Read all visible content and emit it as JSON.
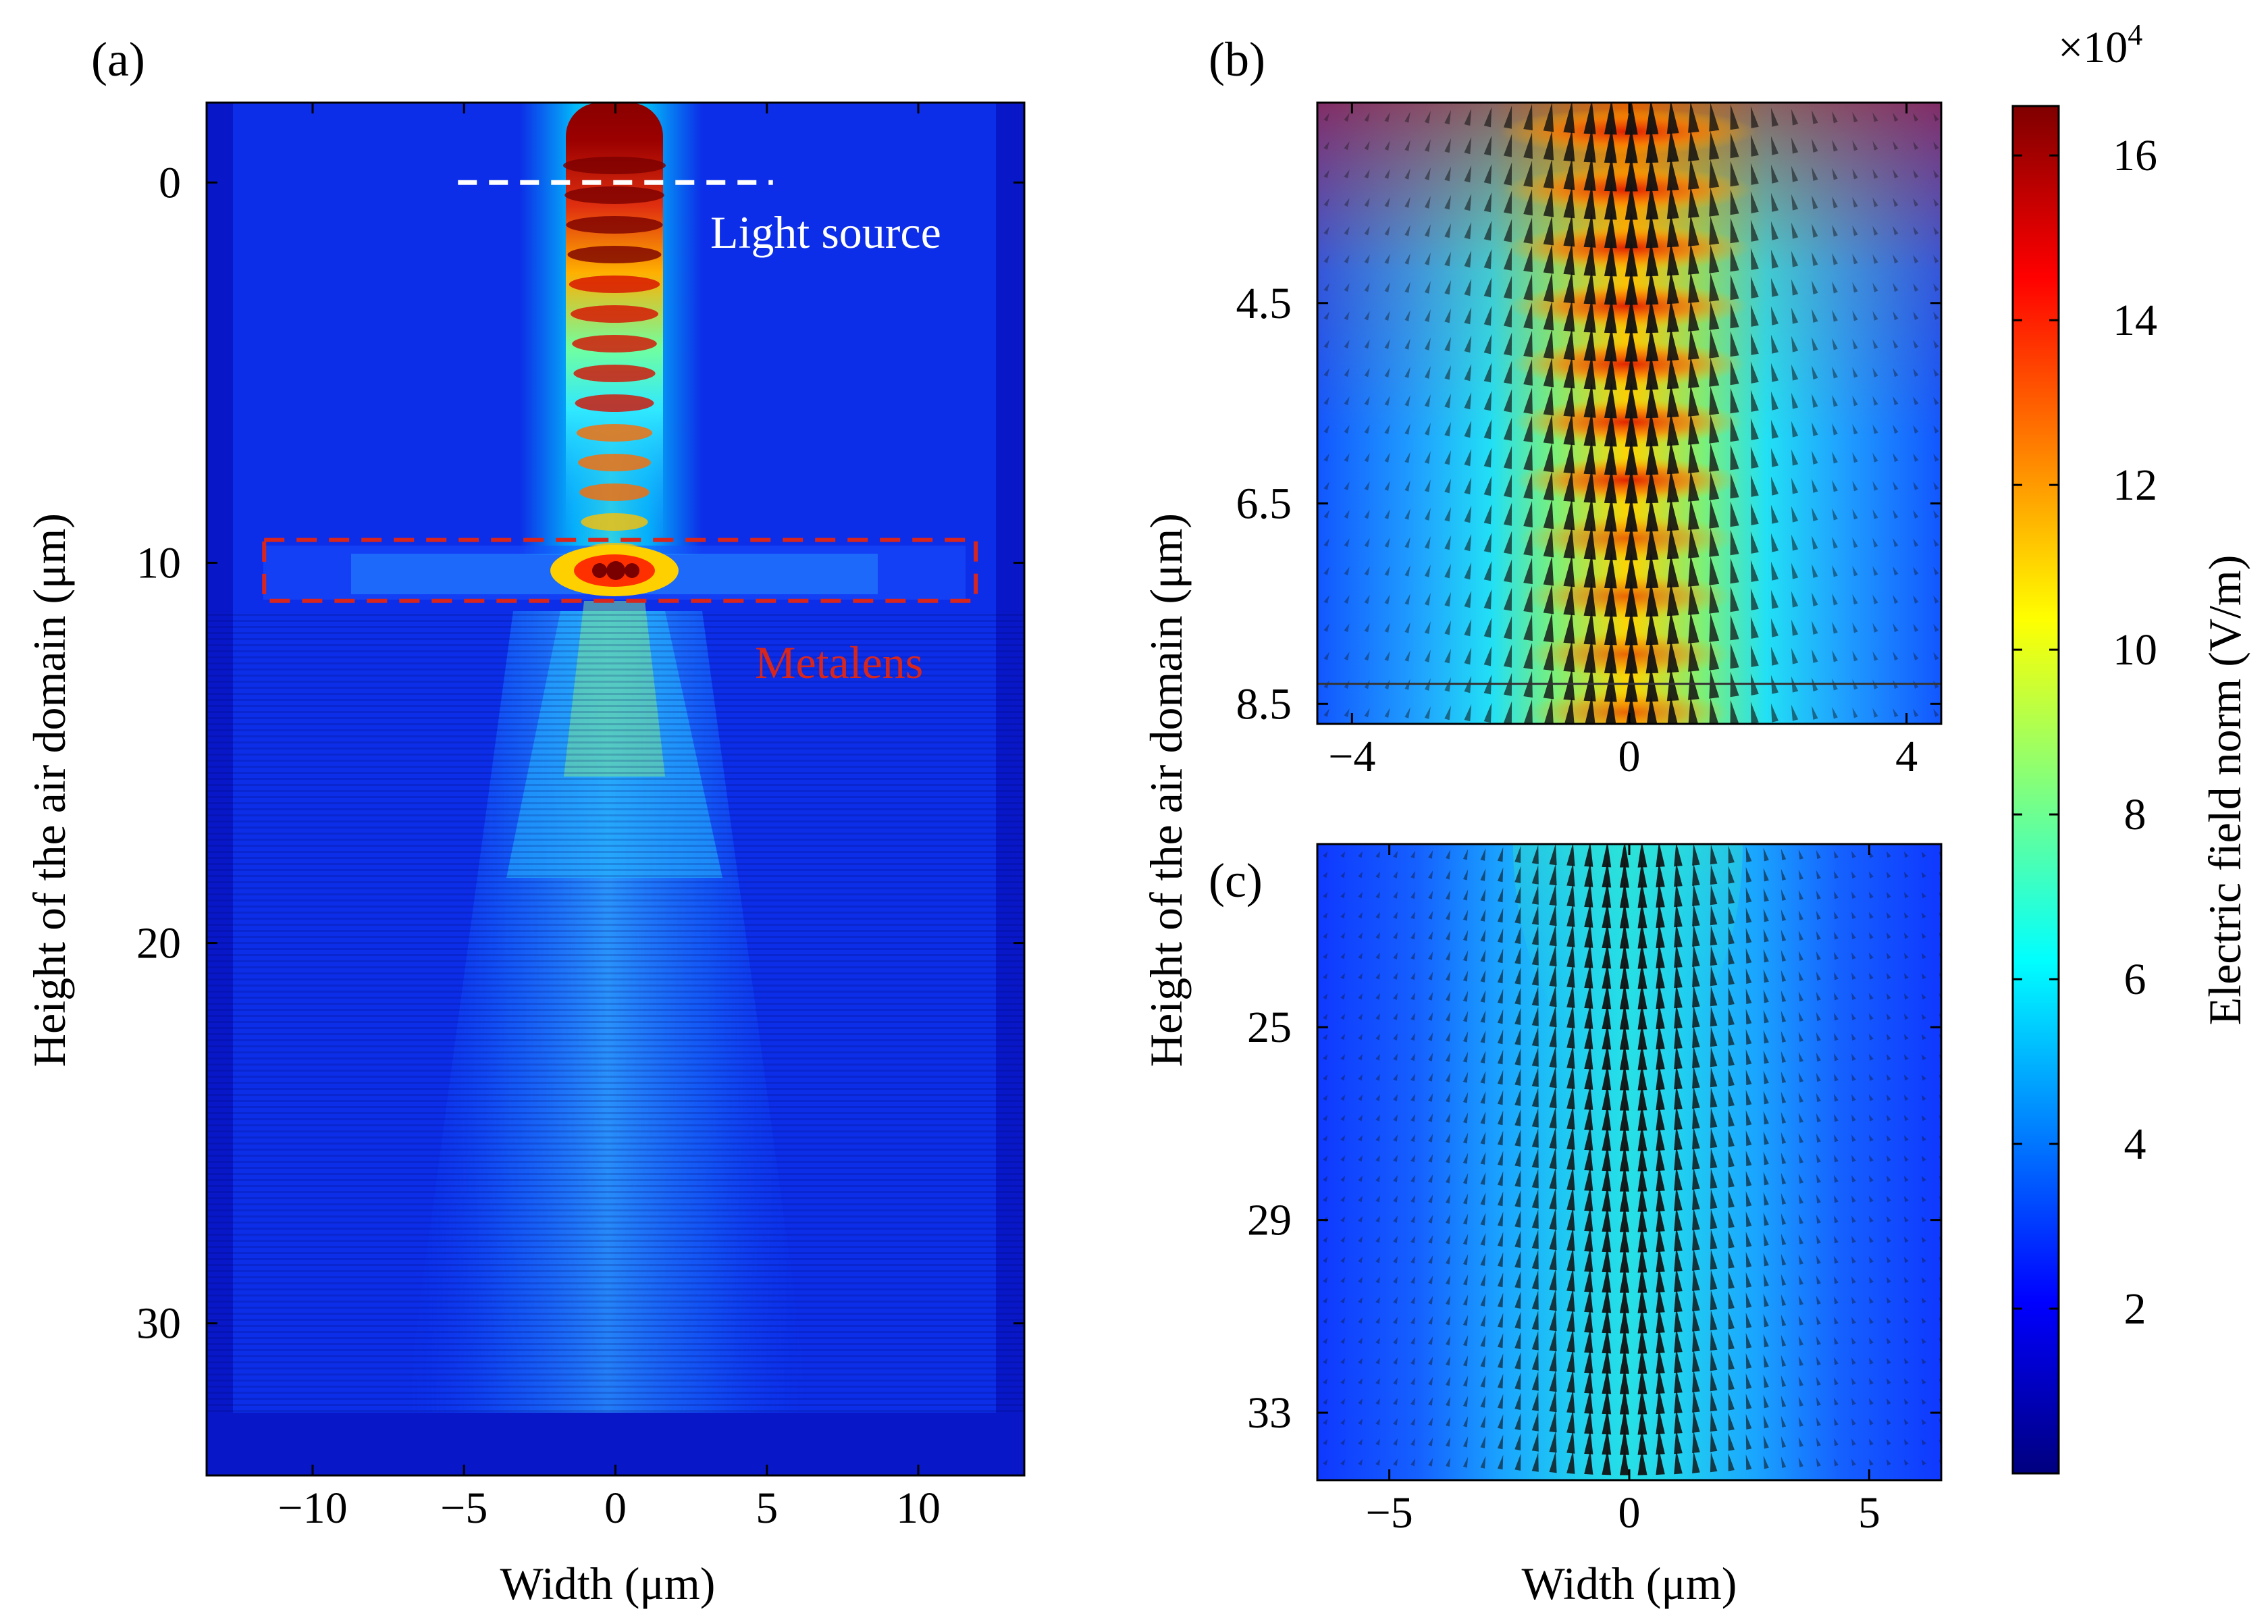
{
  "chart_data": [
    {
      "panel": "(a)",
      "type": "heatmap",
      "xlabel": "Width (μm)",
      "ylabel": "Height of the air domain (μm)",
      "xlim": [
        -13.5,
        13.5
      ],
      "ylim": [
        -2.1,
        34.0
      ],
      "y_inverted": true,
      "xticks": [
        -10,
        -5,
        0,
        5,
        10
      ],
      "xtick_labels": [
        "−10",
        "−5",
        "0",
        "5",
        "10"
      ],
      "yticks": [
        0,
        10,
        20,
        30
      ],
      "ytick_labels": [
        "0",
        "10",
        "20",
        "30"
      ],
      "annotations": [
        {
          "text": "Light source",
          "line_x": [
            -5.2,
            5.2
          ],
          "line_y": 0,
          "color": "#ffffff",
          "style": "dashed"
        },
        {
          "text": "Metalens",
          "box_x": [
            -11.6,
            11.9
          ],
          "box_y": [
            9.4,
            11.0
          ],
          "color": "#d9261c",
          "style": "dashed"
        }
      ]
    },
    {
      "panel": "(b)",
      "type": "heatmap",
      "overlay": "electric field arrows",
      "xlim": [
        -4.5,
        4.5
      ],
      "ylim": [
        2.5,
        8.7
      ],
      "y_inverted": true,
      "xticks": [
        -4,
        0,
        4
      ],
      "xtick_labels": [
        "−4",
        "0",
        "4"
      ],
      "yticks": [
        4.5,
        6.5,
        8.5
      ],
      "ytick_labels": [
        "4.5",
        "6.5",
        "8.5"
      ],
      "boundary_line_y": 8.3
    },
    {
      "panel": "(c)",
      "type": "heatmap",
      "overlay": "electric field arrows",
      "xlabel": "Width (μm)",
      "xlim": [
        -6.5,
        6.5
      ],
      "ylim": [
        21.2,
        34.4
      ],
      "y_inverted": true,
      "xticks": [
        -5,
        0,
        5
      ],
      "xtick_labels": [
        "−5",
        "0",
        "5"
      ],
      "yticks": [
        25,
        29,
        33
      ],
      "ytick_labels": [
        "25",
        "29",
        "33"
      ]
    }
  ],
  "shared_ylabel_right": "Height of the air domain (μm)",
  "colorbar": {
    "label": "Electric field norm (V/m)",
    "multiplier": "×10",
    "exponent": "4",
    "range": [
      0,
      16.6
    ],
    "ticks": [
      2,
      4,
      6,
      8,
      10,
      12,
      14,
      16
    ],
    "tick_labels": [
      "2",
      "4",
      "6",
      "8",
      "10",
      "12",
      "14",
      "16"
    ],
    "colormap": [
      "#00007f",
      "#0000ff",
      "#007fff",
      "#00ffff",
      "#7fff7f",
      "#ffff00",
      "#ff7f00",
      "#ff0000",
      "#7f0000"
    ]
  }
}
